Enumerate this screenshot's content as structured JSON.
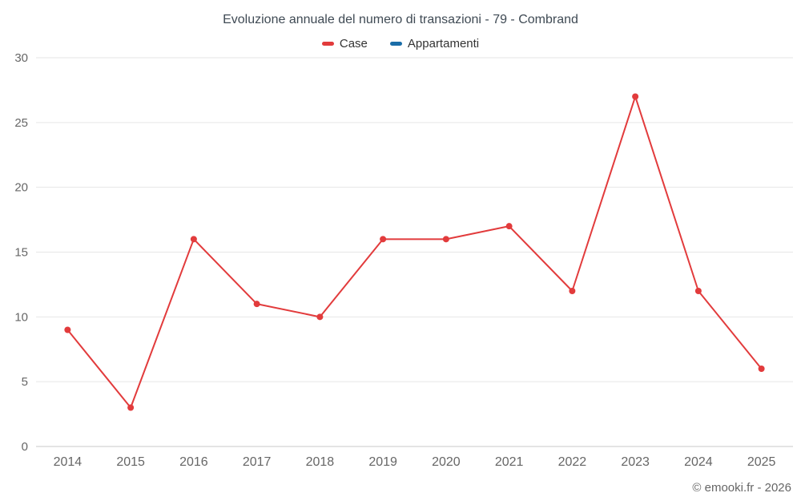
{
  "footer": "© emooki.fr - 2026",
  "chart_data": {
    "type": "line",
    "title": "Evoluzione annuale del numero di transazioni - 79 - Combrand",
    "categories": [
      "2014",
      "2015",
      "2016",
      "2017",
      "2018",
      "2019",
      "2020",
      "2021",
      "2022",
      "2023",
      "2024",
      "2025"
    ],
    "series": [
      {
        "name": "Case",
        "color": "#e23b3c",
        "values": [
          9,
          3,
          16,
          11,
          10,
          16,
          16,
          17,
          12,
          27,
          12,
          6
        ]
      },
      {
        "name": "Appartamenti",
        "color": "#1a6da8",
        "values": []
      }
    ],
    "xlabel": "",
    "ylabel": "",
    "ylim": [
      0,
      30
    ],
    "yticks": [
      0,
      5,
      10,
      15,
      20,
      25,
      30
    ],
    "grid": "horizontal",
    "legend_position": "top",
    "axis_text_color": "#666666",
    "gridline_color": "#e6e6e6",
    "axis_line_color": "#c9c9c9"
  }
}
